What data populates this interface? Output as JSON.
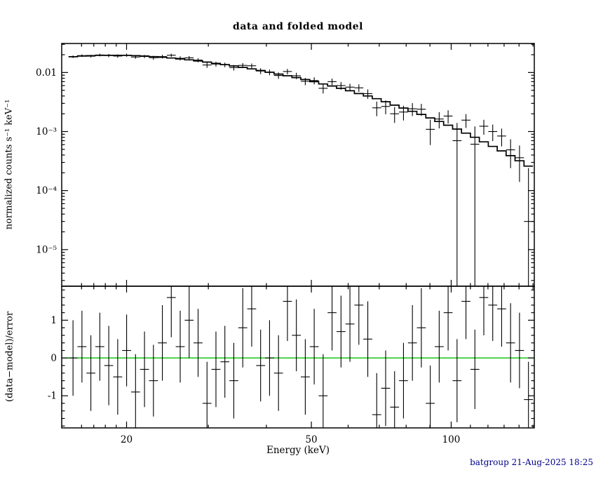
{
  "chart_data": {
    "type": "scatter",
    "style": "x-ray-spectrum-errorbars-with-folded-model-histogram",
    "title": "data and folded model",
    "xlabel": "Energy (keV)",
    "footer": "batgroup 21-Aug-2025 18:25",
    "x_scale": "log",
    "xlim": [
      14.5,
      151
    ],
    "x_major_ticks": [
      {
        "value": 20,
        "label": "20"
      },
      {
        "value": 50,
        "label": "50"
      },
      {
        "value": 100,
        "label": "100"
      }
    ],
    "x_minor_ticks": [
      16,
      17,
      18,
      19,
      30,
      40,
      60,
      70,
      80,
      90,
      110,
      120,
      130,
      140,
      150
    ],
    "panels": [
      {
        "name": "spectrum",
        "ylabel": "normalized counts s⁻¹ keV⁻¹",
        "y_scale": "log",
        "ylim": [
          2.4e-06,
          0.031
        ],
        "y_major_ticks": [
          {
            "value": 1e-05,
            "label": "10⁻⁵"
          },
          {
            "value": 0.0001,
            "label": "10⁻⁴"
          },
          {
            "value": 0.001,
            "label": "10⁻³"
          },
          {
            "value": 0.01,
            "label": "0.01"
          }
        ]
      },
      {
        "name": "residuals",
        "ylabel": "(data−model)/error",
        "y_scale": "linear",
        "ylim": [
          -1.85,
          1.9
        ],
        "y_minor_step": 0.2,
        "y_major_ticks": [
          {
            "value": -1,
            "label": "-1"
          },
          {
            "value": 0,
            "label": "0"
          },
          {
            "value": 1,
            "label": "1"
          }
        ]
      }
    ],
    "bins": {
      "edges": [
        15.0,
        15.68,
        16.39,
        17.13,
        17.91,
        18.72,
        19.57,
        20.45,
        21.38,
        22.35,
        23.36,
        24.42,
        25.52,
        26.68,
        27.89,
        29.15,
        30.47,
        31.85,
        33.29,
        34.8,
        36.38,
        38.02,
        39.75,
        41.55,
        43.43,
        45.4,
        47.45,
        49.6,
        51.84,
        54.19,
        56.64,
        59.21,
        61.89,
        64.69,
        67.62,
        70.68,
        73.88,
        77.22,
        80.71,
        84.36,
        88.18,
        92.17,
        96.34,
        100.7,
        105.25,
        110.01,
        114.99,
        120.19,
        125.63,
        131.31,
        137.25,
        143.46,
        150.0
      ],
      "model": [
        0.0185,
        0.019,
        0.0193,
        0.0195,
        0.0196,
        0.0196,
        0.0195,
        0.0193,
        0.019,
        0.0186,
        0.0181,
        0.0176,
        0.017,
        0.0164,
        0.0157,
        0.015,
        0.0143,
        0.0136,
        0.0129,
        0.0122,
        0.0115,
        0.0108,
        0.0101,
        0.0094,
        0.0088,
        0.0082,
        0.0076,
        0.007,
        0.0064,
        0.0059,
        0.0054,
        0.0049,
        0.0044,
        0.004,
        0.0036,
        0.0032,
        0.0028,
        0.0025,
        0.0022,
        0.00195,
        0.0017,
        0.00148,
        0.00128,
        0.0011,
        0.00094,
        0.0008,
        0.00067,
        0.00056,
        0.00047,
        0.00039,
        0.00032,
        0.00026
      ],
      "data": [
        0.0185,
        0.0193,
        0.0189,
        0.0198,
        0.0194,
        0.019,
        0.0197,
        0.0183,
        0.0187,
        0.0178,
        0.0186,
        0.0196,
        0.0174,
        0.0177,
        0.0162,
        0.0134,
        0.0139,
        0.0135,
        0.0121,
        0.0132,
        0.013,
        0.0106,
        0.0101,
        0.0089,
        0.0104,
        0.0088,
        0.0071,
        0.0073,
        0.0054,
        0.007,
        0.006,
        0.00565,
        0.0055,
        0.00438,
        0.00252,
        0.00266,
        0.002,
        0.00214,
        0.00243,
        0.00239,
        0.00109,
        0.00163,
        0.00183,
        0.0007,
        0.00156,
        0.00061,
        0.00123,
        0.001,
        0.00084,
        0.00049,
        0.00036,
        3e-05
      ],
      "data_err": [
        0.0009,
        0.00095,
        0.00097,
        0.00098,
        0.0012,
        0.0012,
        0.0012,
        0.0012,
        0.0011,
        0.0013,
        0.0013,
        0.0012,
        0.0014,
        0.0013,
        0.0013,
        0.0014,
        0.0013,
        0.0012,
        0.0013,
        0.0012,
        0.0012,
        0.0012,
        0.0011,
        0.0011,
        0.0011,
        0.0011,
        0.001,
        0.001,
        0.001,
        0.0009,
        0.0009,
        0.0008,
        0.0008,
        0.0008,
        0.0007,
        0.0007,
        0.0006,
        0.0006,
        0.0006,
        0.00055,
        0.0005,
        0.0005,
        0.00046,
        0.0007,
        0.00041,
        0.00061,
        0.00035,
        0.00031,
        0.00028,
        0.00025,
        0.00022,
        0.00021
      ],
      "resid": [
        0.0,
        0.3,
        -0.4,
        0.3,
        -0.2,
        -0.5,
        0.2,
        -0.9,
        -0.3,
        -0.6,
        0.4,
        1.6,
        0.3,
        1.0,
        0.4,
        -1.2,
        -0.3,
        -0.1,
        -0.6,
        0.8,
        1.3,
        -0.2,
        0.0,
        -0.4,
        1.5,
        0.6,
        -0.5,
        0.3,
        -1.0,
        1.2,
        0.7,
        0.9,
        1.4,
        0.5,
        -1.5,
        -0.8,
        -1.3,
        -0.6,
        0.4,
        0.8,
        -1.2,
        0.3,
        1.2,
        -0.6,
        1.5,
        -0.3,
        1.6,
        1.4,
        1.3,
        0.4,
        0.2,
        -1.1
      ],
      "resid_err": [
        1.0,
        0.95,
        1.0,
        0.9,
        1.05,
        1.0,
        0.95,
        1.0,
        1.0,
        0.95,
        1.0,
        1.05,
        0.95,
        1.0,
        0.9,
        1.1,
        1.0,
        0.95,
        1.0,
        1.05,
        1.0,
        0.95,
        1.0,
        1.0,
        1.05,
        0.95,
        1.0,
        1.0,
        1.1,
        1.0,
        0.95,
        1.0,
        1.05,
        1.0,
        1.1,
        1.0,
        0.95,
        1.0,
        1.0,
        1.05,
        1.0,
        0.95,
        1.0,
        1.1,
        1.0,
        1.05,
        1.0,
        0.95,
        1.0,
        1.05,
        1.0,
        1.0
      ]
    },
    "colors": {
      "background": "#ffffff",
      "data": "#000000",
      "model": "#000000",
      "zero_line": "#00c000",
      "footer_text": "#00008b",
      "title_text": "#000000"
    }
  }
}
